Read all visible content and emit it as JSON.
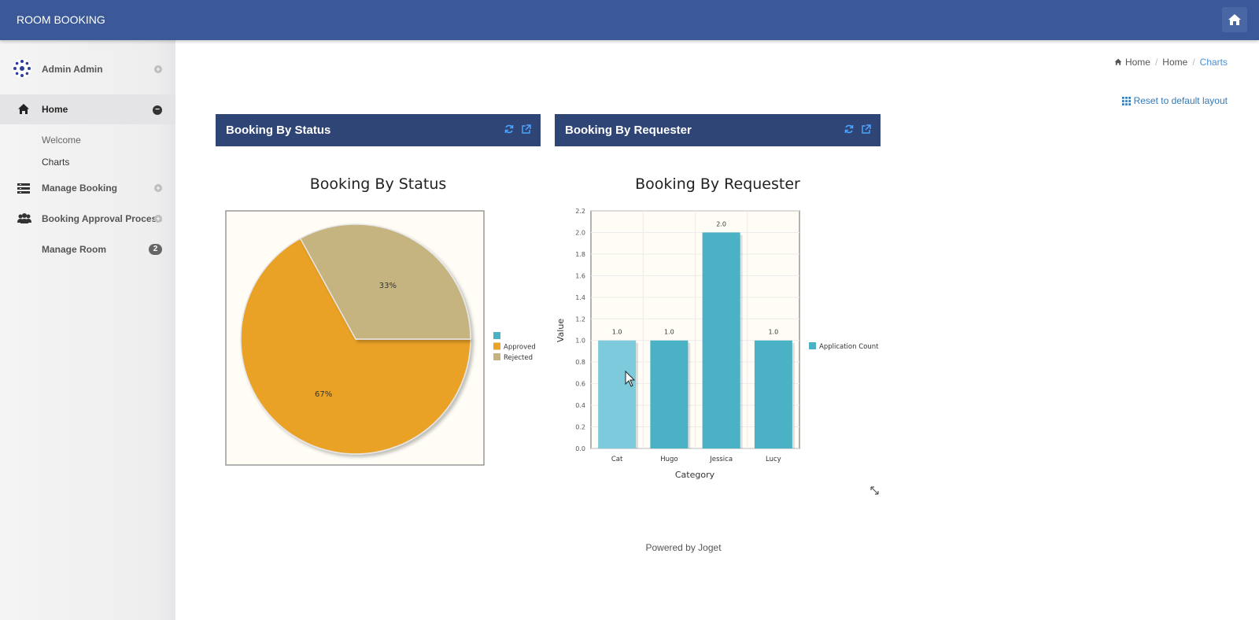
{
  "app": {
    "title": "ROOM BOOKING"
  },
  "user": {
    "name": "Admin Admin"
  },
  "sidebar": {
    "home": {
      "label": "Home",
      "children": [
        "Welcome",
        "Charts"
      ]
    },
    "items": [
      {
        "label": "Manage Booking"
      },
      {
        "label": "Booking Approval Process"
      },
      {
        "label": "Manage Room",
        "badge": "2"
      }
    ]
  },
  "breadcrumb": [
    "Home",
    "Home",
    "Charts"
  ],
  "reset_label": "Reset to default layout",
  "panels": [
    {
      "title": "Booking By Status"
    },
    {
      "title": "Booking By Requester"
    }
  ],
  "chart_data": [
    {
      "type": "pie",
      "title": "Booking By Status",
      "categories": [
        "",
        "Approved",
        "Rejected"
      ],
      "values": [
        0,
        67,
        33
      ],
      "labels": [
        "",
        "67%",
        "33%"
      ],
      "colors": [
        "#4bb2c5",
        "#eaa228",
        "#c5b47f"
      ],
      "legend": "right"
    },
    {
      "type": "bar",
      "title": "Booking By Requester",
      "categories": [
        "Cat",
        "Hugo",
        "Jessica",
        "Lucy"
      ],
      "series": [
        {
          "name": "Application Count",
          "values": [
            1.0,
            1.0,
            2.0,
            1.0
          ]
        }
      ],
      "data_labels": [
        "1.0",
        "1.0",
        "2.0",
        "1.0"
      ],
      "xlabel": "Category",
      "ylabel": "Value",
      "ylim": [
        0,
        2.2
      ],
      "yticks": [
        "0.0",
        "0.2",
        "0.4",
        "0.6",
        "0.8",
        "1.0",
        "1.2",
        "1.4",
        "1.6",
        "1.8",
        "2.0",
        "2.2"
      ],
      "color": "#4bb2c5",
      "highlight_color": "#7ccadb",
      "highlighted_index": 0,
      "legend": "right",
      "grid": true
    }
  ],
  "footer": {
    "powered": "Powered by Joget"
  }
}
